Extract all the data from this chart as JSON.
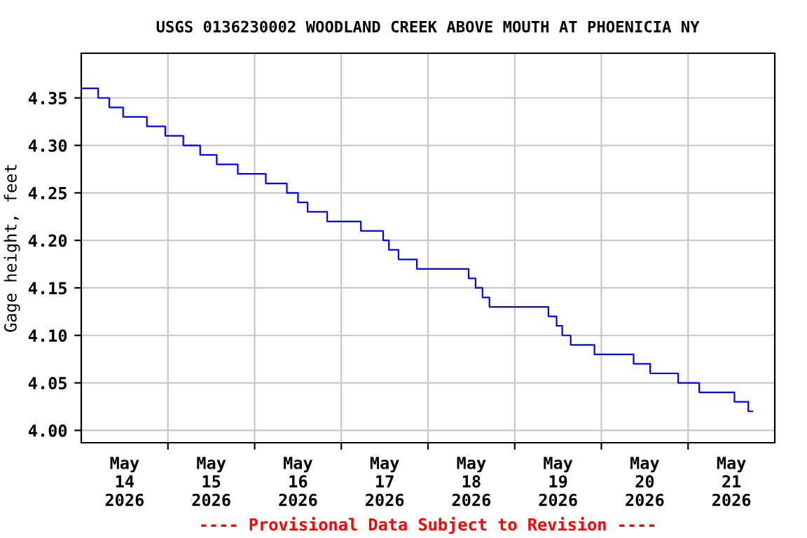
{
  "chart_data": {
    "type": "step",
    "title": "USGS 0136230002 WOODLAND CREEK ABOVE MOUTH AT PHOENICIA NY",
    "ylabel": "Gage height, feet",
    "annotations": [
      "---- Provisional Data Subject to Revision ----"
    ],
    "series": [
      {
        "color": "#0000ff",
        "x": [
          "2026-05-14T00:00",
          "2026-05-14T04:40",
          "2026-05-14T07:45",
          "2026-05-14T11:35",
          "2026-05-14T18:10",
          "2026-05-14T23:15",
          "2026-05-15T04:15",
          "2026-05-15T08:55",
          "2026-05-15T13:30",
          "2026-05-15T19:20",
          "2026-05-16T03:05",
          "2026-05-16T08:55",
          "2026-05-16T12:00",
          "2026-05-16T14:40",
          "2026-05-16T20:05",
          "2026-05-17T02:20",
          "2026-05-17T05:25",
          "2026-05-17T11:35",
          "2026-05-17T13:10",
          "2026-05-17T15:50",
          "2026-05-17T20:55",
          "2026-05-18T11:15",
          "2026-05-18T13:10",
          "2026-05-18T15:05",
          "2026-05-18T17:00",
          "2026-05-19T09:20",
          "2026-05-19T11:35",
          "2026-05-19T13:10",
          "2026-05-19T15:30",
          "2026-05-19T22:05",
          "2026-05-20T08:55",
          "2026-05-20T13:30",
          "2026-05-20T21:15",
          "2026-05-21T03:05",
          "2026-05-21T12:50",
          "2026-05-21T16:40",
          "2026-05-21T17:50"
        ],
        "values": [
          4.36,
          4.35,
          4.34,
          4.33,
          4.32,
          4.31,
          4.3,
          4.29,
          4.28,
          4.27,
          4.26,
          4.25,
          4.24,
          4.23,
          4.22,
          4.22,
          4.21,
          4.2,
          4.19,
          4.18,
          4.17,
          4.16,
          4.15,
          4.14,
          4.13,
          4.12,
          4.11,
          4.1,
          4.09,
          4.08,
          4.07,
          4.06,
          4.05,
          4.04,
          4.03,
          4.02,
          4.02
        ]
      }
    ],
    "xlim": [
      "2026-05-14T00:00",
      "2026-05-22T00:00"
    ],
    "xticks": [
      {
        "value": "2026-05-14T12:00",
        "label": "May\n14\n2026"
      },
      {
        "value": "2026-05-15T00:00",
        "label": null
      },
      {
        "value": "2026-05-15T12:00",
        "label": "May\n15\n2026"
      },
      {
        "value": "2026-05-16T00:00",
        "label": null
      },
      {
        "value": "2026-05-16T12:00",
        "label": "May\n16\n2026"
      },
      {
        "value": "2026-05-17T00:00",
        "label": null
      },
      {
        "value": "2026-05-17T12:00",
        "label": "May\n17\n2026"
      },
      {
        "value": "2026-05-18T00:00",
        "label": null
      },
      {
        "value": "2026-05-18T12:00",
        "label": "May\n18\n2026"
      },
      {
        "value": "2026-05-19T00:00",
        "label": null
      },
      {
        "value": "2026-05-19T12:00",
        "label": "May\n19\n2026"
      },
      {
        "value": "2026-05-20T00:00",
        "label": null
      },
      {
        "value": "2026-05-20T12:00",
        "label": "May\n20\n2026"
      },
      {
        "value": "2026-05-21T00:00",
        "label": null
      },
      {
        "value": "2026-05-21T12:00",
        "label": "May\n21\n2026"
      }
    ],
    "ylim": [
      3.987,
      4.397
    ],
    "yticks": [
      {
        "value": 4.0,
        "label": "4.00"
      },
      {
        "value": 4.05,
        "label": "4.05"
      },
      {
        "value": 4.1,
        "label": "4.10"
      },
      {
        "value": 4.15,
        "label": "4.15"
      },
      {
        "value": 4.2,
        "label": "4.20"
      },
      {
        "value": 4.25,
        "label": "4.25"
      },
      {
        "value": 4.3,
        "label": "4.30"
      },
      {
        "value": 4.35,
        "label": "4.35"
      }
    ],
    "grid": true
  }
}
